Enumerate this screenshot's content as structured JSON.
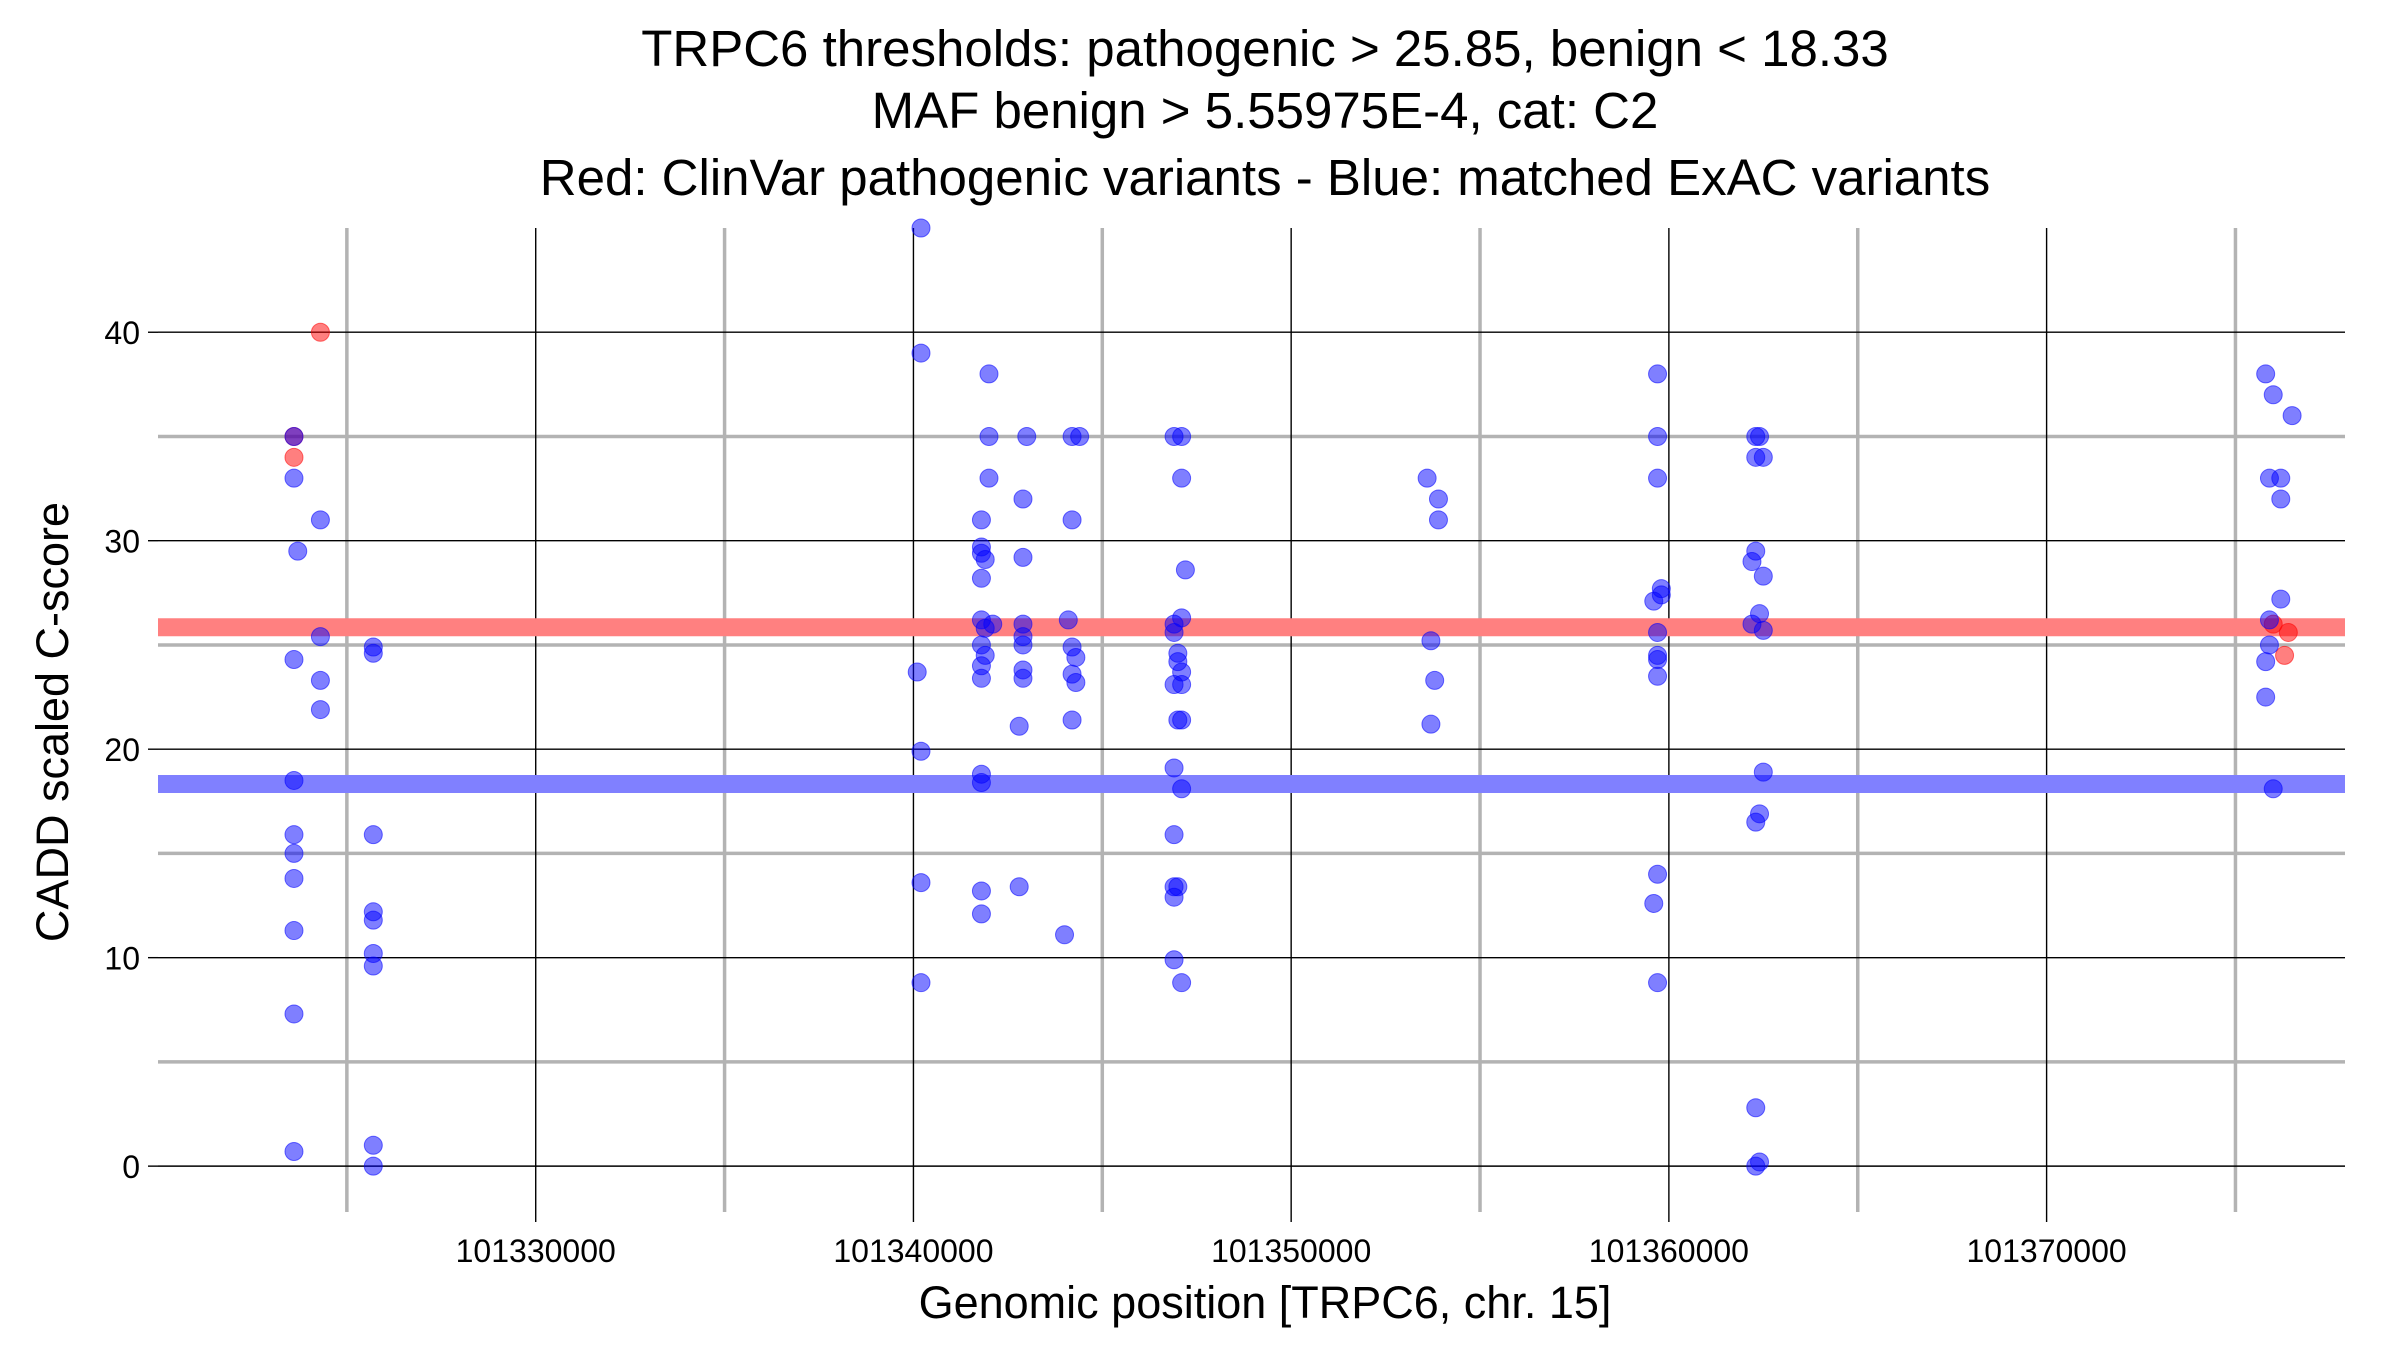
{
  "chart_data": {
    "type": "scatter",
    "title": [
      "TRPC6 thresholds: pathogenic > 25.85, benign < 18.33",
      "MAF benign > 5.55975E-4, cat: C2",
      "Red: ClinVar pathogenic variants - Blue: matched ExAC variants"
    ],
    "xlabel": "Genomic position [TRPC6, chr. 15]",
    "ylabel": "CADD scaled C-score",
    "xlim": [
      101320000,
      101377900
    ],
    "ylim": [
      -2.2,
      45.0
    ],
    "x_ticks": [
      101330000,
      101340000,
      101350000,
      101360000,
      101370000
    ],
    "x_tick_labels": [
      "101330000",
      "101340000",
      "101350000",
      "101360000",
      "101370000"
    ],
    "y_ticks": [
      0,
      10,
      20,
      30,
      40
    ],
    "y_tick_labels": [
      "0",
      "10",
      "20",
      "30",
      "40"
    ],
    "grid": true,
    "thresholds": {
      "pathogenic": {
        "value": 25.85,
        "color": "#ff8080"
      },
      "benign": {
        "value": 18.33,
        "color": "#8080ff"
      }
    },
    "series": [
      {
        "color": "#ff0000",
        "points": [
          [
            101323600,
            35.0
          ],
          [
            101323600,
            34.0
          ],
          [
            101324300,
            40.0
          ],
          [
            101376000,
            26.0
          ],
          [
            101376400,
            25.6
          ],
          [
            101376300,
            24.5
          ]
        ]
      },
      {
        "color": "#0000ff",
        "points": [
          [
            101323600,
            35.0
          ],
          [
            101323600,
            33.0
          ],
          [
            101323700,
            29.5
          ],
          [
            101323600,
            24.3
          ],
          [
            101323600,
            18.5
          ],
          [
            101323600,
            15.9
          ],
          [
            101323600,
            15.0
          ],
          [
            101323600,
            13.8
          ],
          [
            101323600,
            11.3
          ],
          [
            101323600,
            7.3
          ],
          [
            101323600,
            0.7
          ],
          [
            101324300,
            31.0
          ],
          [
            101324300,
            25.4
          ],
          [
            101324300,
            23.3
          ],
          [
            101324300,
            21.9
          ],
          [
            101325700,
            24.9
          ],
          [
            101325700,
            24.6
          ],
          [
            101325700,
            15.9
          ],
          [
            101325700,
            12.2
          ],
          [
            101325700,
            11.8
          ],
          [
            101325700,
            10.2
          ],
          [
            101325700,
            9.6
          ],
          [
            101325700,
            1.0
          ],
          [
            101325700,
            0.0
          ],
          [
            101340200,
            45.0
          ],
          [
            101340200,
            39.0
          ],
          [
            101340100,
            23.7
          ],
          [
            101340200,
            19.9
          ],
          [
            101340200,
            13.6
          ],
          [
            101340200,
            8.8
          ],
          [
            101341800,
            31.0
          ],
          [
            101341800,
            29.7
          ],
          [
            101341800,
            29.4
          ],
          [
            101341900,
            29.1
          ],
          [
            101341800,
            28.2
          ],
          [
            101341800,
            26.2
          ],
          [
            101341900,
            25.8
          ],
          [
            101341800,
            25.0
          ],
          [
            101341900,
            24.5
          ],
          [
            101341800,
            24.0
          ],
          [
            101341800,
            23.4
          ],
          [
            101341800,
            18.8
          ],
          [
            101341800,
            18.4
          ],
          [
            101341800,
            13.2
          ],
          [
            101341800,
            12.1
          ],
          [
            101342000,
            38.0
          ],
          [
            101342000,
            35.0
          ],
          [
            101342000,
            33.0
          ],
          [
            101342100,
            26.0
          ],
          [
            101342900,
            32.0
          ],
          [
            101342900,
            29.2
          ],
          [
            101342900,
            26.0
          ],
          [
            101342900,
            25.4
          ],
          [
            101342900,
            25.0
          ],
          [
            101342900,
            23.8
          ],
          [
            101342900,
            23.4
          ],
          [
            101342800,
            21.1
          ],
          [
            101342800,
            13.4
          ],
          [
            101343000,
            35.0
          ],
          [
            101344100,
            26.2
          ],
          [
            101344200,
            24.9
          ],
          [
            101344300,
            24.4
          ],
          [
            101344200,
            23.6
          ],
          [
            101344300,
            23.2
          ],
          [
            101344200,
            21.4
          ],
          [
            101344000,
            11.1
          ],
          [
            101344200,
            31.0
          ],
          [
            101344200,
            35.0
          ],
          [
            101344400,
            35.0
          ],
          [
            101346900,
            35.0
          ],
          [
            101347100,
            35.0
          ],
          [
            101347100,
            33.0
          ],
          [
            101347200,
            28.6
          ],
          [
            101347100,
            26.3
          ],
          [
            101346900,
            26.0
          ],
          [
            101346900,
            25.6
          ],
          [
            101347000,
            24.6
          ],
          [
            101347000,
            24.2
          ],
          [
            101347100,
            23.7
          ],
          [
            101346900,
            23.1
          ],
          [
            101347100,
            23.1
          ],
          [
            101347000,
            21.4
          ],
          [
            101347100,
            21.4
          ],
          [
            101346900,
            19.1
          ],
          [
            101347100,
            18.1
          ],
          [
            101346900,
            15.9
          ],
          [
            101346900,
            13.4
          ],
          [
            101347000,
            13.4
          ],
          [
            101346900,
            12.9
          ],
          [
            101346900,
            9.9
          ],
          [
            101347100,
            8.8
          ],
          [
            101353600,
            33.0
          ],
          [
            101353900,
            32.0
          ],
          [
            101353900,
            31.0
          ],
          [
            101353700,
            25.2
          ],
          [
            101353800,
            23.3
          ],
          [
            101353700,
            21.2
          ],
          [
            101359700,
            38.0
          ],
          [
            101359700,
            35.0
          ],
          [
            101359700,
            33.0
          ],
          [
            101359800,
            27.7
          ],
          [
            101359600,
            27.1
          ],
          [
            101359800,
            27.4
          ],
          [
            101359700,
            25.6
          ],
          [
            101359700,
            24.5
          ],
          [
            101359700,
            24.3
          ],
          [
            101359700,
            23.5
          ],
          [
            101359700,
            14.0
          ],
          [
            101359600,
            12.6
          ],
          [
            101359700,
            8.8
          ],
          [
            101362300,
            35.0
          ],
          [
            101362400,
            35.0
          ],
          [
            101362300,
            34.0
          ],
          [
            101362500,
            34.0
          ],
          [
            101362300,
            29.5
          ],
          [
            101362200,
            29.0
          ],
          [
            101362500,
            28.3
          ],
          [
            101362400,
            26.5
          ],
          [
            101362200,
            26.0
          ],
          [
            101362500,
            25.7
          ],
          [
            101362500,
            18.9
          ],
          [
            101362400,
            16.9
          ],
          [
            101362300,
            16.5
          ],
          [
            101362300,
            2.8
          ],
          [
            101362400,
            0.2
          ],
          [
            101362300,
            0.0
          ],
          [
            101375800,
            38.0
          ],
          [
            101376000,
            37.0
          ],
          [
            101376500,
            36.0
          ],
          [
            101375900,
            33.0
          ],
          [
            101376200,
            33.0
          ],
          [
            101376200,
            32.0
          ],
          [
            101376200,
            27.2
          ],
          [
            101375900,
            26.2
          ],
          [
            101375900,
            25.0
          ],
          [
            101375800,
            24.2
          ],
          [
            101375800,
            22.5
          ],
          [
            101376000,
            18.1
          ]
        ]
      }
    ]
  }
}
